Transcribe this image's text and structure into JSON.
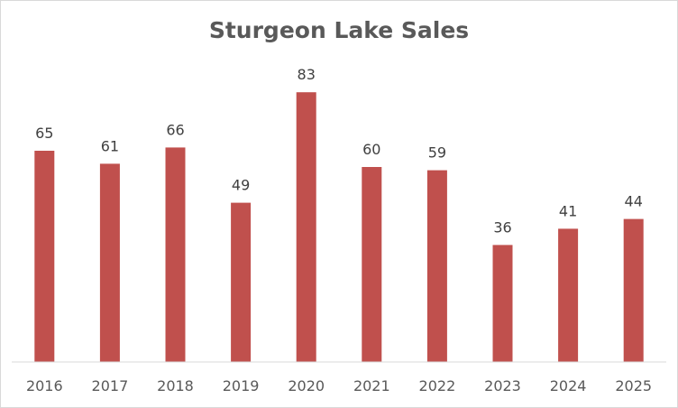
{
  "chart_data": {
    "type": "bar",
    "title": "Sturgeon Lake Sales",
    "xlabel": "",
    "ylabel": "",
    "categories": [
      "2016",
      "2017",
      "2018",
      "2019",
      "2020",
      "2021",
      "2022",
      "2023",
      "2024",
      "2025"
    ],
    "values": [
      65,
      61,
      66,
      49,
      83,
      60,
      59,
      36,
      41,
      44
    ],
    "ylim": [
      0,
      100
    ],
    "grid": false,
    "legend": "none",
    "data_labels": true,
    "bar_color": "#c0504d"
  }
}
